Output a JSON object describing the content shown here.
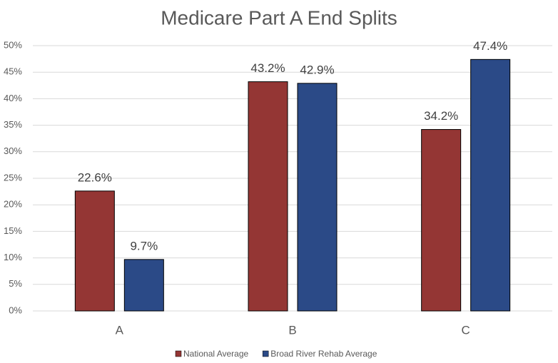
{
  "chart_data": {
    "type": "bar",
    "title": "Medicare Part A End Splits",
    "categories": [
      "A",
      "B",
      "C"
    ],
    "series": [
      {
        "name": "National Average",
        "color": "#943634",
        "values": [
          22.6,
          43.2,
          34.2
        ],
        "value_labels": [
          "22.6%",
          "43.2%",
          "34.2%"
        ]
      },
      {
        "name": "Broad River Rehab Average",
        "color": "#2b4a87",
        "values": [
          9.7,
          42.9,
          47.4
        ],
        "value_labels": [
          "9.7%",
          "42.9%",
          "47.4%"
        ]
      }
    ],
    "ylim": [
      0,
      50
    ],
    "yticks": [
      {
        "value": 0,
        "label": "0%"
      },
      {
        "value": 5,
        "label": "5%"
      },
      {
        "value": 10,
        "label": "10%"
      },
      {
        "value": 15,
        "label": "15%"
      },
      {
        "value": 20,
        "label": "20%"
      },
      {
        "value": 25,
        "label": "25%"
      },
      {
        "value": 30,
        "label": "30%"
      },
      {
        "value": 35,
        "label": "35%"
      },
      {
        "value": 40,
        "label": "40%"
      },
      {
        "value": 45,
        "label": "45%"
      },
      {
        "value": 50,
        "label": "50%"
      }
    ],
    "grid": true,
    "legend": "bottom"
  }
}
